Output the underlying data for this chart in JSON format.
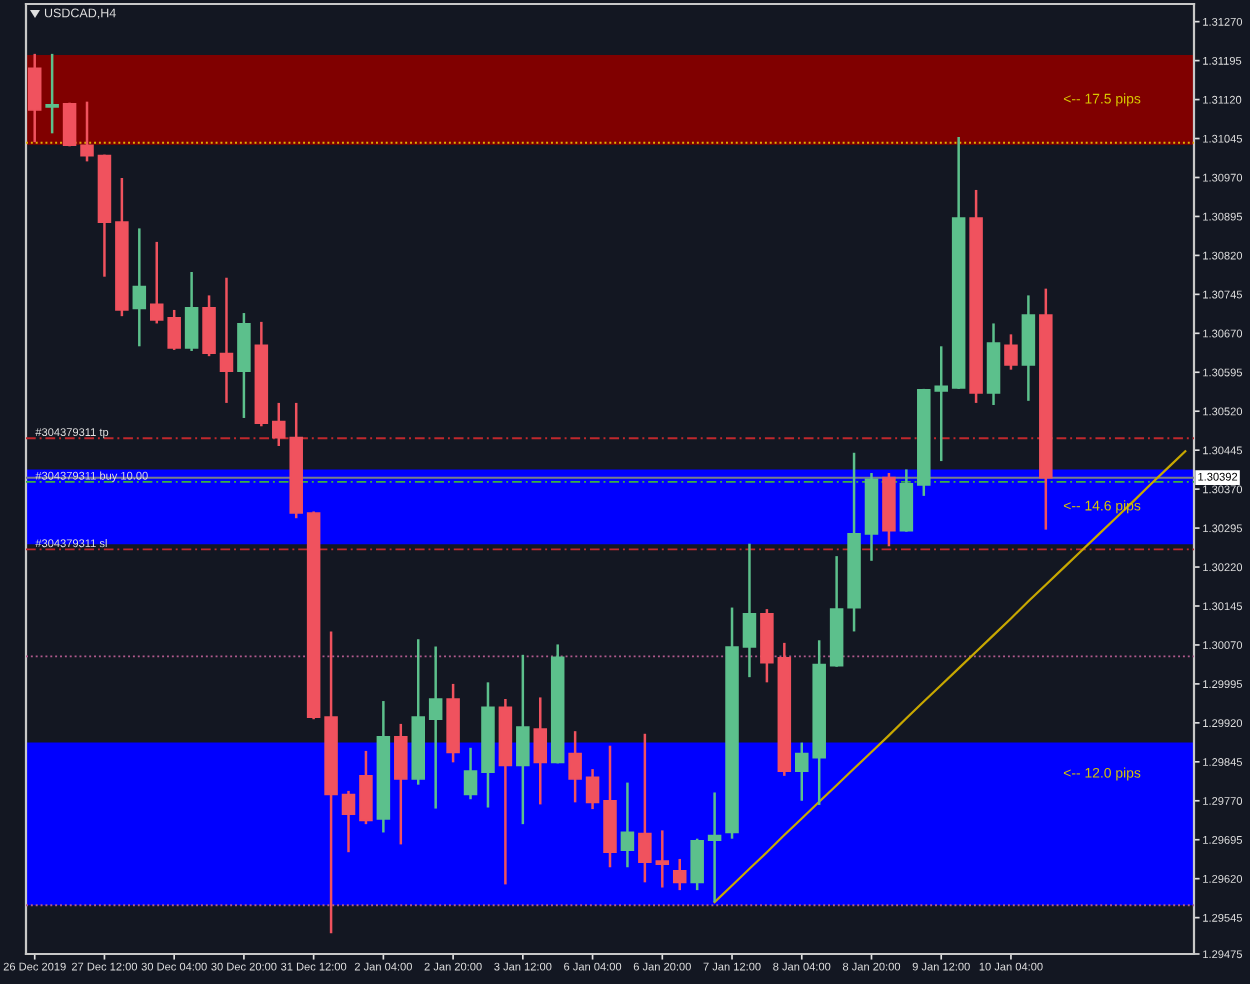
{
  "chart_data": {
    "type": "candlestick",
    "title": "USDCAD,H4",
    "categories": [
      "26 Dec 2019",
      null,
      null,
      null,
      "27 Dec 12:00",
      null,
      null,
      null,
      "30 Dec 04:00",
      null,
      null,
      null,
      "30 Dec 20:00",
      null,
      null,
      null,
      "31 Dec 12:00",
      null,
      null,
      null,
      "2 Jan 04:00",
      null,
      null,
      null,
      "2 Jan 20:00",
      null,
      null,
      null,
      "3 Jan 12:00",
      null,
      null,
      null,
      "6 Jan 04:00",
      null,
      null,
      null,
      "6 Jan 20:00",
      null,
      null,
      null,
      "7 Jan 12:00",
      null,
      null,
      null,
      "8 Jan 04:00",
      null,
      null,
      null,
      "8 Jan 20:00",
      null,
      null,
      null,
      "9 Jan 12:00",
      null,
      null,
      null,
      "10 Jan 04:00",
      null,
      null,
      null,
      null,
      null,
      null,
      null,
      null,
      null,
      null
    ],
    "ohlc": [
      [
        1.3118,
        1.31208,
        1.31038,
        1.311
      ],
      [
        1.31106,
        1.31208,
        1.31055,
        1.3111
      ],
      [
        1.31112,
        1.31114,
        1.3103,
        1.31032
      ],
      [
        1.31032,
        1.31116,
        1.31001,
        1.31012
      ],
      [
        1.31012,
        1.31014,
        1.30779,
        1.30884
      ],
      [
        1.30884,
        1.30969,
        1.30703,
        1.30715
      ],
      [
        1.30718,
        1.30872,
        1.30645,
        1.3076
      ],
      [
        1.30726,
        1.30846,
        1.30689,
        1.30696
      ],
      [
        1.307,
        1.30715,
        1.30638,
        1.30642
      ],
      [
        1.30642,
        1.30788,
        1.30636,
        1.30719
      ],
      [
        1.30719,
        1.30743,
        1.30626,
        1.30632
      ],
      [
        1.30631,
        1.30777,
        1.30536,
        1.30597
      ],
      [
        1.30597,
        1.30709,
        1.30507,
        1.30688
      ],
      [
        1.30647,
        1.30692,
        1.30491,
        1.30497
      ],
      [
        1.305,
        1.30536,
        1.30453,
        1.30469
      ],
      [
        1.30469,
        1.30536,
        1.30314,
        1.30324
      ],
      [
        1.30324,
        1.30327,
        1.29927,
        1.29931
      ],
      [
        1.29931,
        1.30096,
        1.29515,
        1.29782
      ],
      [
        1.29782,
        1.29789,
        1.29671,
        1.29744
      ],
      [
        1.29818,
        1.29866,
        1.29725,
        1.29732
      ],
      [
        1.29735,
        1.29962,
        1.29709,
        1.29893
      ],
      [
        1.29893,
        1.29918,
        1.29686,
        1.29812
      ],
      [
        1.29812,
        1.30081,
        1.29801,
        1.29931
      ],
      [
        1.29927,
        1.30067,
        1.29755,
        1.29966
      ],
      [
        1.29966,
        1.29995,
        1.29844,
        1.29863
      ],
      [
        1.29782,
        1.29872,
        1.29773,
        1.29827
      ],
      [
        1.29825,
        1.29998,
        1.29757,
        1.2995
      ],
      [
        1.2995,
        1.29966,
        1.29609,
        1.29838
      ],
      [
        1.29838,
        1.30051,
        1.29725,
        1.29912
      ],
      [
        1.29908,
        1.29969,
        1.29763,
        1.29844
      ],
      [
        1.29844,
        1.30071,
        1.29842,
        1.30046
      ],
      [
        1.29861,
        1.29904,
        1.29767,
        1.29812
      ],
      [
        1.29815,
        1.29831,
        1.29754,
        1.29767
      ],
      [
        1.2977,
        1.29876,
        1.29642,
        1.29671
      ],
      [
        1.29675,
        1.29805,
        1.29642,
        1.29709
      ],
      [
        1.29707,
        1.29899,
        1.29613,
        1.29652
      ],
      [
        1.29654,
        1.29713,
        1.29603,
        1.29648
      ],
      [
        1.29635,
        1.29658,
        1.29598,
        1.29613
      ],
      [
        1.29613,
        1.29697,
        1.29598,
        1.29693
      ],
      [
        1.29694,
        1.29786,
        1.29575,
        1.29703
      ],
      [
        1.29709,
        1.30142,
        1.29697,
        1.30066
      ],
      [
        1.30066,
        1.30265,
        1.30008,
        1.3013
      ],
      [
        1.3013,
        1.30139,
        1.29998,
        1.30036
      ],
      [
        1.30045,
        1.30074,
        1.29818,
        1.29827
      ],
      [
        1.29827,
        1.29882,
        1.2977,
        1.29861
      ],
      [
        1.29853,
        1.30079,
        1.29762,
        1.30032
      ],
      [
        1.3003,
        1.30241,
        1.30028,
        1.30139
      ],
      [
        1.30142,
        1.3044,
        1.30096,
        1.30284
      ],
      [
        1.30284,
        1.30401,
        1.30232,
        1.30389
      ],
      [
        1.30392,
        1.30401,
        1.3026,
        1.3029
      ],
      [
        1.3029,
        1.30408,
        1.30288,
        1.3038
      ],
      [
        1.30378,
        1.30563,
        1.30357,
        1.30561
      ],
      [
        1.30559,
        1.30645,
        1.30424,
        1.30568
      ],
      [
        1.30565,
        1.31048,
        1.30563,
        1.30892
      ],
      [
        1.30892,
        1.30946,
        1.30536,
        1.30555
      ],
      [
        1.30555,
        1.30689,
        1.30532,
        1.30651
      ],
      [
        1.30647,
        1.30668,
        1.306,
        1.30609
      ],
      [
        1.30609,
        1.30743,
        1.3054,
        1.30705
      ],
      [
        1.30705,
        1.30756,
        1.30292,
        1.30392
      ],
      null,
      null,
      null,
      null,
      null,
      null,
      null,
      null
    ],
    "colors": [
      "#f0525e",
      "#5cc08c",
      "#f0525e",
      "#f0525e",
      "#f0525e",
      "#f0525e",
      "#5cc08c",
      "#f0525e",
      "#f0525e",
      "#5cc08c",
      "#f0525e",
      "#f0525e",
      "#5cc08c",
      "#f0525e",
      "#f0525e",
      "#f0525e",
      "#f0525e",
      "#f0525e",
      "#f0525e",
      "#f0525e",
      "#5cc08c",
      "#f0525e",
      "#5cc08c",
      "#5cc08c",
      "#f0525e",
      "#5cc08c",
      "#5cc08c",
      "#f0525e",
      "#5cc08c",
      "#f0525e",
      "#5cc08c",
      "#f0525e",
      "#f0525e",
      "#f0525e",
      "#5cc08c",
      "#f0525e",
      "#f0525e",
      "#f0525e",
      "#5cc08c",
      "#5cc08c",
      "#5cc08c",
      "#5cc08c",
      "#f0525e",
      "#f0525e",
      "#5cc08c",
      "#5cc08c",
      "#5cc08c",
      "#5cc08c",
      "#5cc08c",
      "#f0525e",
      "#5cc08c",
      "#5cc08c",
      "#5cc08c",
      "#5cc08c",
      "#f0525e",
      "#5cc08c",
      "#f0525e",
      "#5cc08c",
      "#f0525e",
      null,
      null,
      null,
      null,
      null,
      null,
      null,
      null
    ],
    "series": [
      {
        "type": "line",
        "color": "#c8a800",
        "values": [
          null,
          null,
          null,
          null,
          null,
          null,
          null,
          null,
          null,
          null,
          null,
          null,
          null,
          null,
          null,
          null,
          null,
          null,
          null,
          null,
          null,
          null,
          null,
          null,
          null,
          null,
          null,
          null,
          null,
          null,
          null,
          null,
          null,
          null,
          null,
          null,
          null,
          null,
          null,
          1.29575,
          1.29607,
          1.29639,
          1.29671,
          1.29704,
          1.29736,
          1.29768,
          1.298,
          1.29832,
          1.29864,
          1.29896,
          1.29929,
          1.29961,
          1.29993,
          1.30025,
          1.30057,
          1.30089,
          1.30121,
          1.30154,
          1.30186,
          1.30218,
          1.3025,
          1.30282,
          1.30314,
          1.30346,
          1.30379,
          1.30411,
          1.30443
        ]
      }
    ],
    "ylim": [
      1.29475,
      1.31304
    ],
    "yticks": [
      {
        "value": 1.3127,
        "label": "1.31270"
      },
      {
        "value": 1.31195,
        "label": "1.31195"
      },
      {
        "value": 1.3112,
        "label": "1.31120"
      },
      {
        "value": 1.31045,
        "label": "1.31045"
      },
      {
        "value": 1.3097,
        "label": "1.30970"
      },
      {
        "value": 1.30895,
        "label": "1.30895"
      },
      {
        "value": 1.3082,
        "label": "1.30820"
      },
      {
        "value": 1.30745,
        "label": "1.30745"
      },
      {
        "value": 1.3067,
        "label": "1.30670"
      },
      {
        "value": 1.30595,
        "label": "1.30595"
      },
      {
        "value": 1.3052,
        "label": "1.30520"
      },
      {
        "value": 1.30445,
        "label": "1.30445"
      },
      {
        "value": 1.3037,
        "label": "1.30370"
      },
      {
        "value": 1.30295,
        "label": "1.30295"
      },
      {
        "value": 1.3022,
        "label": "1.30220"
      },
      {
        "value": 1.30145,
        "label": "1.30145"
      },
      {
        "value": 1.3007,
        "label": "1.30070"
      },
      {
        "value": 1.29995,
        "label": "1.29995"
      },
      {
        "value": 1.2992,
        "label": "1.29920"
      },
      {
        "value": 1.29845,
        "label": "1.29845"
      },
      {
        "value": 1.2977,
        "label": "1.29770"
      },
      {
        "value": 1.29695,
        "label": "1.29695"
      },
      {
        "value": 1.2962,
        "label": "1.29620"
      },
      {
        "value": 1.29545,
        "label": "1.29545"
      },
      {
        "value": 1.29475,
        "label": "1.29475"
      }
    ],
    "ref_lines": [
      {
        "axis": "y",
        "value": 1.30468,
        "label": "#304379311 tp",
        "color": "#c0282d",
        "line_style": "dashdot"
      },
      {
        "axis": "y",
        "value": 1.30384,
        "label": "#304379311 buy 10.00",
        "color": "#3cb043",
        "line_style": "dashdot"
      },
      {
        "axis": "y",
        "value": 1.30254,
        "label": "#304379311 sl",
        "color": "#c0282d",
        "line_style": "dashdot"
      },
      {
        "axis": "y",
        "value": 1.30392,
        "label": "1.30392",
        "color": "#7a7f8c",
        "line_style": "solid"
      },
      {
        "axis": "y",
        "value": 1.31037,
        "color": "#e0b000",
        "line_style": "dotted"
      },
      {
        "axis": "y",
        "value": 1.30048,
        "color": "#b05a8c",
        "line_style": "dotted"
      },
      {
        "axis": "y",
        "value": 1.29569,
        "color": "#b05a8c",
        "line_style": "dotted"
      }
    ],
    "bands": [
      {
        "axis": "y",
        "from": 1.31033,
        "to": 1.31206,
        "label": "<-- 17.5 pips",
        "color": "#800000"
      },
      {
        "axis": "y",
        "from": 1.30264,
        "to": 1.30408,
        "label": "<-- 14.6 pips",
        "color": "#0000ff"
      },
      {
        "axis": "y",
        "from": 1.29761,
        "to": 1.29882,
        "label": "<-- 12.0 pips",
        "color": "#0000ff"
      },
      {
        "axis": "y",
        "from": 1.29569,
        "to": 1.29805,
        "color": "#0000ff"
      }
    ],
    "grid": false
  }
}
